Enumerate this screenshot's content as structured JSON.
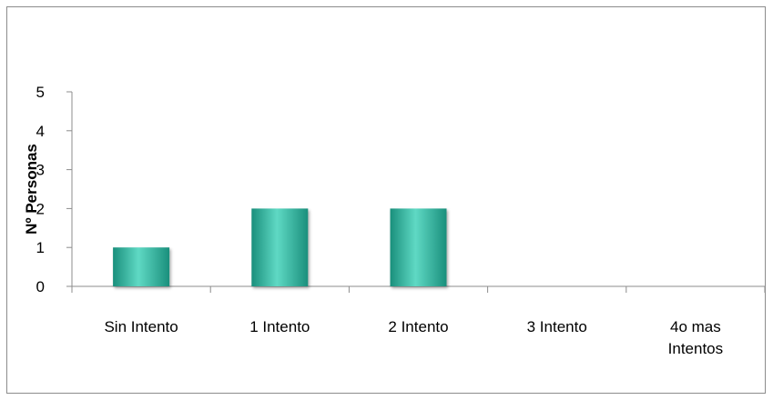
{
  "chart_data": {
    "type": "bar",
    "title": "",
    "xlabel": "",
    "ylabel": "Nº Personas",
    "categories": [
      "Sin Intento",
      "1 Intento",
      "2 Intento",
      "3 Intento",
      "4o mas Intentos"
    ],
    "category_lines": [
      [
        "Sin Intento"
      ],
      [
        "1 Intento"
      ],
      [
        "2 Intento"
      ],
      [
        "3 Intento"
      ],
      [
        "4o mas",
        "Intentos"
      ]
    ],
    "values": [
      1,
      2,
      2,
      0,
      0
    ],
    "ylim": [
      0,
      5
    ],
    "yticks": [
      "0",
      "1",
      "2",
      "3",
      "4",
      "5"
    ],
    "grid": false,
    "legend": "none",
    "colors": {
      "bar": "#2dbfa6",
      "bar_dark": "#1a8f7c",
      "bar_light": "#5fd9c4",
      "axis": "#8c8c8c"
    }
  }
}
